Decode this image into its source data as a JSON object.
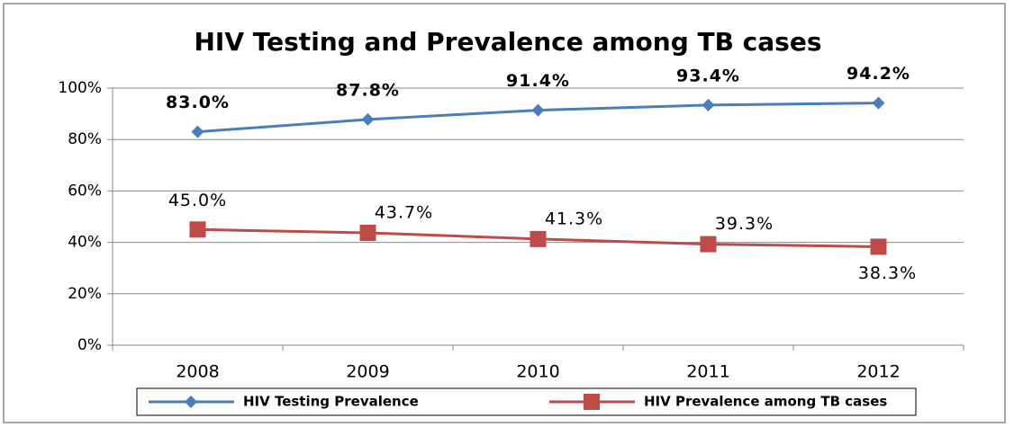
{
  "chart_data": {
    "type": "line",
    "title": "HIV Testing and Prevalence among TB cases",
    "categories": [
      "2008",
      "2009",
      "2010",
      "2011",
      "2012"
    ],
    "series": [
      {
        "name": "HIV Testing Prevalence",
        "color": "#4a7ebb",
        "marker": "diamond",
        "values": [
          83.0,
          87.8,
          91.4,
          93.4,
          94.2
        ],
        "value_labels": [
          "83.0%",
          "87.8%",
          "91.4%",
          "93.4%",
          "94.2%"
        ]
      },
      {
        "name": "HIV Prevalence among TB cases",
        "color": "#be4b48",
        "marker": "square",
        "values": [
          45.0,
          43.7,
          41.3,
          39.3,
          38.3
        ],
        "value_labels": [
          "45.0%",
          "43.7%",
          "41.3%",
          "39.3%",
          "38.3%"
        ]
      }
    ],
    "ylim": [
      0,
      100
    ],
    "yticks": [
      {
        "value": 0,
        "label": "0%"
      },
      {
        "value": 20,
        "label": "20%"
      },
      {
        "value": 40,
        "label": "40%"
      },
      {
        "value": 60,
        "label": "60%"
      },
      {
        "value": 80,
        "label": "80%"
      },
      {
        "value": 100,
        "label": "100%"
      }
    ],
    "grid": true,
    "legend": "bottom"
  }
}
